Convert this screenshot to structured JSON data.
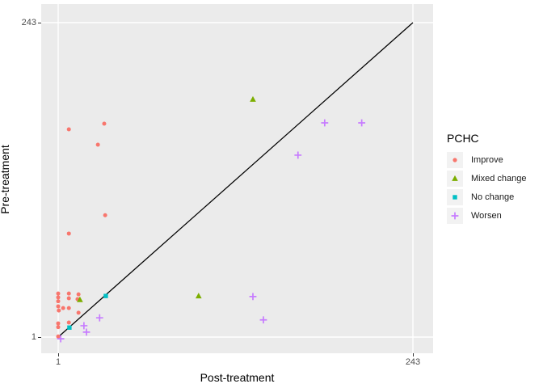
{
  "figure": {
    "x_axis": {
      "title": "Post-treatment",
      "tick_labels": [
        "1",
        "243"
      ]
    },
    "y_axis": {
      "title": "Pre-treatment",
      "tick_labels": [
        "1",
        "243"
      ]
    },
    "legend": {
      "title": "PCHC",
      "items": [
        {
          "label": "Improve",
          "shape": "circle",
          "color": "#F8766D"
        },
        {
          "label": "Mixed change",
          "shape": "triangle",
          "color": "#7CAE00"
        },
        {
          "label": "No change",
          "shape": "square",
          "color": "#00BFC4"
        },
        {
          "label": "Worsen",
          "shape": "plus",
          "color": "#C77CFF"
        }
      ]
    }
  },
  "chart_data": {
    "type": "scatter",
    "title": "",
    "xlabel": "Post-treatment",
    "ylabel": "Pre-treatment",
    "x_scale": "log",
    "y_scale": "log",
    "log_base": 3,
    "x_range": [
      1,
      243
    ],
    "y_range": [
      1,
      243
    ],
    "x_ticks": [
      1,
      243
    ],
    "y_ticks": [
      1,
      243
    ],
    "grid": "white major gridlines on grey panel",
    "panel_background": "#EBEBEB",
    "legend_position": "right",
    "legend_title": "PCHC",
    "identity_line": {
      "from": [
        1,
        1
      ],
      "to": [
        243,
        243
      ],
      "color": "#000000"
    },
    "series": [
      {
        "name": "Improve",
        "shape": "circle",
        "color": "#F8766D",
        "points": [
          [
            1.18,
            37.7
          ],
          [
            2.04,
            41.6
          ],
          [
            1.85,
            28.8
          ],
          [
            2.07,
            8.4
          ],
          [
            1.18,
            6.1
          ],
          [
            1.0,
            2.14
          ],
          [
            1.0,
            2.0
          ],
          [
            1.0,
            1.87
          ],
          [
            1.18,
            2.14
          ],
          [
            1.18,
            1.97
          ],
          [
            1.37,
            2.11
          ],
          [
            1.35,
            1.94
          ],
          [
            1.0,
            1.71
          ],
          [
            1.01,
            1.59
          ],
          [
            1.08,
            1.66
          ],
          [
            1.18,
            1.66
          ],
          [
            1.37,
            1.53
          ],
          [
            1.0,
            1.27
          ],
          [
            1.0,
            1.19
          ],
          [
            1.18,
            1.29
          ],
          [
            1.0,
            1.01
          ]
        ]
      },
      {
        "name": "Mixed change",
        "shape": "triangle",
        "color": "#7CAE00",
        "points": [
          [
            20.4,
            63.6
          ],
          [
            1.4,
            1.92
          ],
          [
            8.8,
            2.05
          ]
        ]
      },
      {
        "name": "No change",
        "shape": "square",
        "color": "#00BFC4",
        "points": [
          [
            2.09,
            2.05
          ],
          [
            1.19,
            1.18
          ]
        ]
      },
      {
        "name": "Worsen",
        "shape": "plus",
        "color": "#C77CFF",
        "points": [
          [
            62.0,
            42.2
          ],
          [
            110.0,
            42.2
          ],
          [
            41.0,
            24.0
          ],
          [
            20.4,
            2.03
          ],
          [
            24.0,
            1.35
          ],
          [
            1.9,
            1.4
          ],
          [
            1.49,
            1.22
          ],
          [
            1.55,
            1.09
          ],
          [
            1.04,
            0.97
          ]
        ]
      }
    ]
  }
}
